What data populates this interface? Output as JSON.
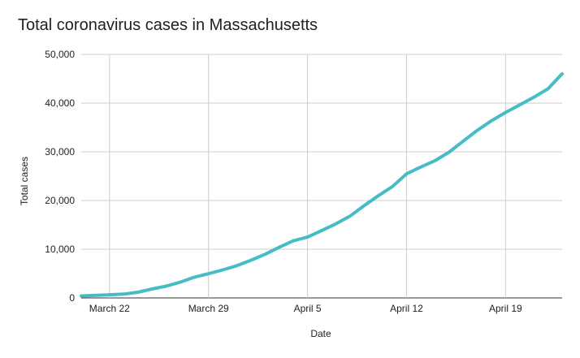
{
  "chart_data": {
    "type": "line",
    "title": "Total coronavirus cases in Massachusetts",
    "xlabel": "Date",
    "ylabel": "Total cases",
    "ylim": [
      0,
      50000
    ],
    "yticks": [
      0,
      10000,
      20000,
      30000,
      40000,
      50000
    ],
    "ytick_labels": [
      "0",
      "10,000",
      "20,000",
      "30,000",
      "40,000",
      "50,000"
    ],
    "xticks": [
      "March 22",
      "March 29",
      "April 5",
      "April 12",
      "April 19"
    ],
    "x": [
      "March 20",
      "March 21",
      "March 22",
      "March 23",
      "March 24",
      "March 25",
      "March 26",
      "March 27",
      "March 28",
      "March 29",
      "March 30",
      "March 31",
      "April 1",
      "April 2",
      "April 3",
      "April 4",
      "April 5",
      "April 6",
      "April 7",
      "April 8",
      "April 9",
      "April 10",
      "April 11",
      "April 12",
      "April 13",
      "April 14",
      "April 15",
      "April 16",
      "April 17",
      "April 18",
      "April 19",
      "April 20",
      "April 21",
      "April 22",
      "April 23"
    ],
    "series": [
      {
        "color": "#46BDC6",
        "values": [
          410,
          525,
          650,
          780,
          1160,
          1840,
          2420,
          3240,
          4260,
          4960,
          5750,
          6620,
          7740,
          8970,
          10400,
          11740,
          12500,
          13840,
          15200,
          16790,
          18940,
          20970,
          22860,
          25480,
          26870,
          28160,
          29920,
          32180,
          34400,
          36370,
          38080,
          39640,
          41200,
          42940,
          46020
        ]
      }
    ],
    "grid": true
  }
}
